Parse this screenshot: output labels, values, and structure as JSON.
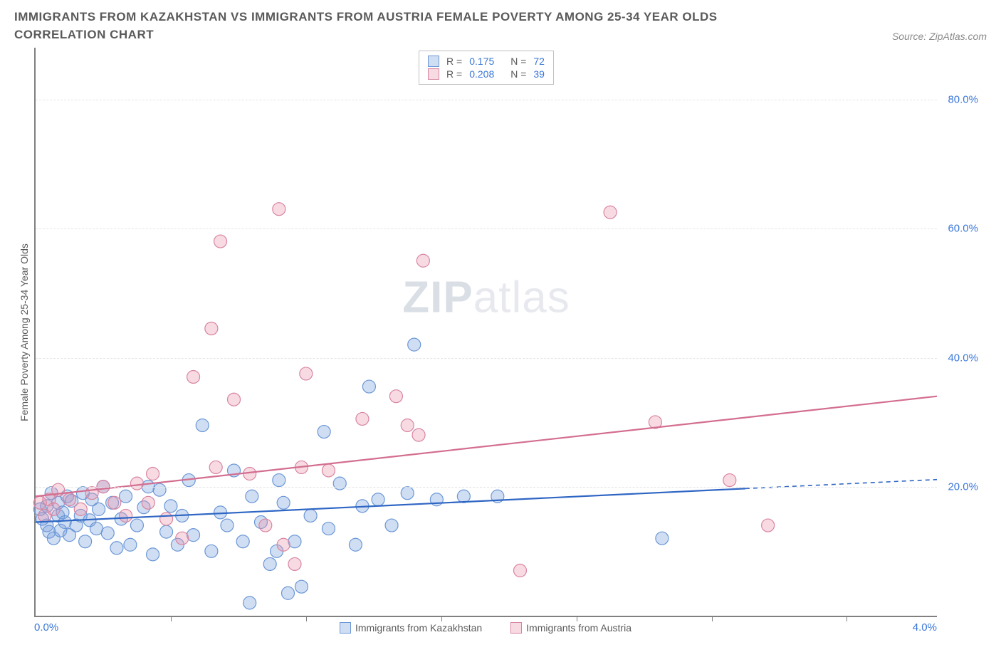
{
  "title": "IMMIGRANTS FROM KAZAKHSTAN VS IMMIGRANTS FROM AUSTRIA FEMALE POVERTY AMONG 25-34 YEAR OLDS CORRELATION CHART",
  "source": "Source: ZipAtlas.com",
  "y_axis_label": "Female Poverty Among 25-34 Year Olds",
  "watermark_zip": "ZIP",
  "watermark_atlas": "atlas",
  "chart": {
    "type": "scatter",
    "background_color": "#ffffff",
    "grid_color": "#e5e5e5",
    "axis_color": "#808080",
    "xlim": [
      0.0,
      4.0
    ],
    "ylim": [
      0.0,
      88.0
    ],
    "y_ticks": [
      20.0,
      40.0,
      60.0,
      80.0
    ],
    "y_tick_labels": [
      "20.0%",
      "40.0%",
      "60.0%",
      "80.0%"
    ],
    "x_tick_positions": [
      0.6,
      1.2,
      1.8,
      2.4,
      3.0,
      3.6
    ],
    "x_min_label": "0.0%",
    "x_max_label": "4.0%",
    "marker_radius": 9,
    "marker_stroke_width": 1.2,
    "trend_line_width": 2.2,
    "series": [
      {
        "key": "kazakhstan",
        "label": "Immigrants from Kazakhstan",
        "fill": "rgba(120,160,220,0.35)",
        "stroke": "#6b97d6",
        "line_color": "#2f66c4",
        "R": "0.175",
        "N": "72",
        "trend": {
          "x1": 0.0,
          "y1": 14.5,
          "x2": 3.15,
          "y2": 19.7,
          "x2_ext": 4.0,
          "y2_ext": 21.1
        },
        "points": [
          [
            0.02,
            16.5
          ],
          [
            0.03,
            15.0
          ],
          [
            0.05,
            14.0
          ],
          [
            0.05,
            17.0
          ],
          [
            0.06,
            13.0
          ],
          [
            0.07,
            19.0
          ],
          [
            0.08,
            12.0
          ],
          [
            0.1,
            15.5
          ],
          [
            0.1,
            17.5
          ],
          [
            0.11,
            13.2
          ],
          [
            0.12,
            16.0
          ],
          [
            0.13,
            14.5
          ],
          [
            0.14,
            18.5
          ],
          [
            0.15,
            12.5
          ],
          [
            0.16,
            17.8
          ],
          [
            0.18,
            14.0
          ],
          [
            0.2,
            15.5
          ],
          [
            0.21,
            19.0
          ],
          [
            0.22,
            11.5
          ],
          [
            0.24,
            14.8
          ],
          [
            0.25,
            18.0
          ],
          [
            0.27,
            13.5
          ],
          [
            0.28,
            16.5
          ],
          [
            0.3,
            20.0
          ],
          [
            0.32,
            12.8
          ],
          [
            0.34,
            17.5
          ],
          [
            0.36,
            10.5
          ],
          [
            0.38,
            15.0
          ],
          [
            0.4,
            18.5
          ],
          [
            0.42,
            11.0
          ],
          [
            0.45,
            14.0
          ],
          [
            0.48,
            16.8
          ],
          [
            0.5,
            20.0
          ],
          [
            0.52,
            9.5
          ],
          [
            0.55,
            19.5
          ],
          [
            0.58,
            13.0
          ],
          [
            0.6,
            17.0
          ],
          [
            0.63,
            11.0
          ],
          [
            0.65,
            15.5
          ],
          [
            0.68,
            21.0
          ],
          [
            0.7,
            12.5
          ],
          [
            0.74,
            29.5
          ],
          [
            0.78,
            10.0
          ],
          [
            0.82,
            16.0
          ],
          [
            0.85,
            14.0
          ],
          [
            0.88,
            22.5
          ],
          [
            0.92,
            11.5
          ],
          [
            0.96,
            18.5
          ],
          [
            1.0,
            14.5
          ],
          [
            1.04,
            8.0
          ],
          [
            1.07,
            10.0
          ],
          [
            1.08,
            21.0
          ],
          [
            1.1,
            17.5
          ],
          [
            1.12,
            3.5
          ],
          [
            1.15,
            11.5
          ],
          [
            1.18,
            4.5
          ],
          [
            1.22,
            15.5
          ],
          [
            1.28,
            28.5
          ],
          [
            1.3,
            13.5
          ],
          [
            1.35,
            20.5
          ],
          [
            1.42,
            11.0
          ],
          [
            1.45,
            17.0
          ],
          [
            1.48,
            35.5
          ],
          [
            1.52,
            18.0
          ],
          [
            1.58,
            14.0
          ],
          [
            1.65,
            19.0
          ],
          [
            1.68,
            42.0
          ],
          [
            1.78,
            18.0
          ],
          [
            1.9,
            18.5
          ],
          [
            2.05,
            18.5
          ],
          [
            2.78,
            12.0
          ],
          [
            0.95,
            2.0
          ]
        ]
      },
      {
        "key": "austria",
        "label": "Immigrants from Austria",
        "fill": "rgba(235,150,175,0.35)",
        "stroke": "#d885a0",
        "line_color": "#d36e8f",
        "R": "0.208",
        "N": "39",
        "trend": {
          "x1": 0.0,
          "y1": 18.5,
          "x2": 4.0,
          "y2": 34.0
        },
        "points": [
          [
            0.02,
            17.5
          ],
          [
            0.04,
            15.5
          ],
          [
            0.06,
            18.0
          ],
          [
            0.08,
            16.5
          ],
          [
            0.1,
            19.5
          ],
          [
            0.15,
            18.0
          ],
          [
            0.2,
            16.5
          ],
          [
            0.25,
            19.0
          ],
          [
            0.3,
            20.0
          ],
          [
            0.35,
            17.5
          ],
          [
            0.4,
            15.5
          ],
          [
            0.45,
            20.5
          ],
          [
            0.52,
            22.0
          ],
          [
            0.58,
            15.0
          ],
          [
            0.65,
            12.0
          ],
          [
            0.7,
            37.0
          ],
          [
            0.78,
            44.5
          ],
          [
            0.8,
            23.0
          ],
          [
            0.82,
            58.0
          ],
          [
            0.88,
            33.5
          ],
          [
            0.95,
            22.0
          ],
          [
            1.02,
            14.0
          ],
          [
            1.08,
            63.0
          ],
          [
            1.1,
            11.0
          ],
          [
            1.15,
            8.0
          ],
          [
            1.18,
            23.0
          ],
          [
            1.2,
            37.5
          ],
          [
            1.3,
            22.5
          ],
          [
            1.45,
            30.5
          ],
          [
            1.6,
            34.0
          ],
          [
            1.65,
            29.5
          ],
          [
            1.7,
            28.0
          ],
          [
            1.72,
            55.0
          ],
          [
            2.15,
            7.0
          ],
          [
            2.55,
            62.5
          ],
          [
            2.75,
            30.0
          ],
          [
            3.08,
            21.0
          ],
          [
            3.25,
            14.0
          ],
          [
            0.5,
            17.5
          ]
        ]
      }
    ]
  },
  "stats_box": {
    "rows": [
      {
        "swatch_series": 0,
        "R_label": "R =",
        "N_label": "N ="
      },
      {
        "swatch_series": 1,
        "R_label": "R =",
        "N_label": "N ="
      }
    ]
  },
  "bottom_legend": {
    "series_order": [
      0,
      1
    ]
  }
}
